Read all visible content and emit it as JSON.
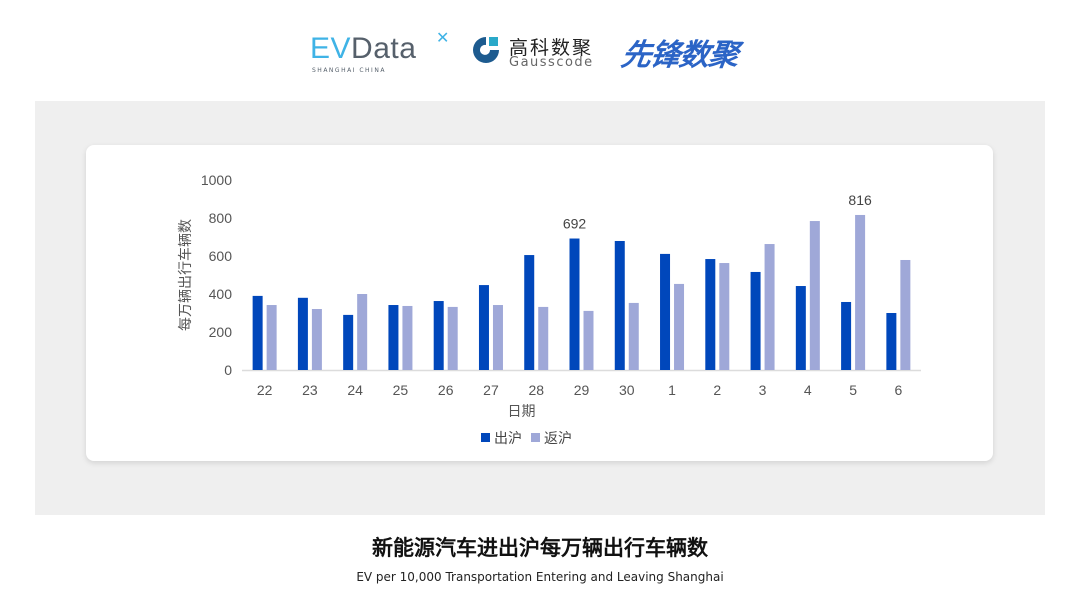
{
  "logos": {
    "evdata": {
      "text": "EVData",
      "sub": "SHANGHAI CHINA"
    },
    "gausscode": {
      "cn": "高科数聚",
      "en": "Gausscode"
    },
    "xianfeng": {
      "text": "先锋数聚"
    }
  },
  "chart_data": {
    "type": "bar",
    "categories": [
      "22",
      "23",
      "24",
      "25",
      "26",
      "27",
      "28",
      "29",
      "30",
      "1",
      "2",
      "3",
      "4",
      "5",
      "6"
    ],
    "series": [
      {
        "name": "出沪",
        "color": "#0047BB",
        "values": [
          390,
          380,
          290,
          342,
          363,
          447,
          605,
          692,
          679,
          611,
          584,
          516,
          442,
          358,
          300
        ]
      },
      {
        "name": "返沪",
        "color": "#9FA8D8",
        "values": [
          342,
          321,
          400,
          337,
          332,
          342,
          332,
          311,
          353,
          453,
          563,
          663,
          784,
          816,
          579
        ]
      }
    ],
    "data_labels": [
      {
        "series": 0,
        "category": "29",
        "text": "692"
      },
      {
        "series": 1,
        "category": "5",
        "text": "816"
      }
    ],
    "xlabel": "日期",
    "ylabel": "每万辆出行车辆数",
    "ylim": [
      0,
      1000
    ],
    "yticks": [
      "0",
      "200",
      "400",
      "600",
      "800",
      "1000"
    ],
    "grid": false,
    "legend": "bottom"
  },
  "footer": {
    "title": "新能源汽车进出沪每万辆出行车辆数",
    "subtitle": "EV per 10,000 Transportation Entering and Leaving Shanghai"
  }
}
